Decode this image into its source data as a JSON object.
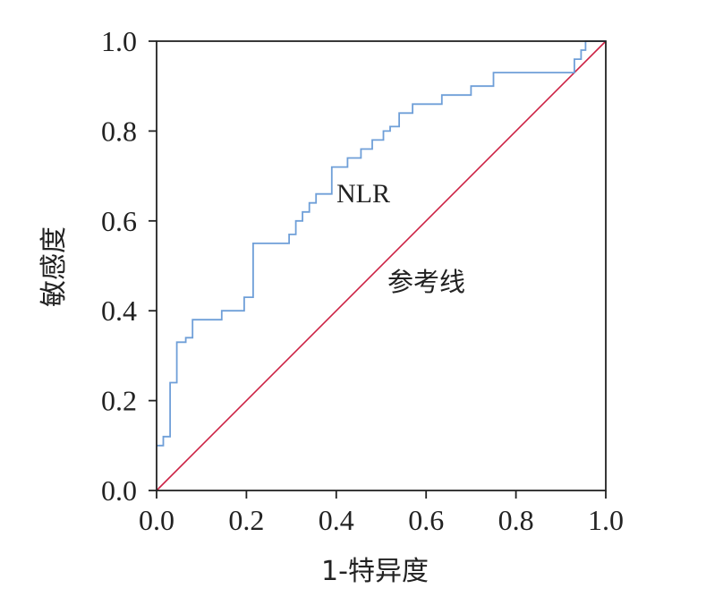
{
  "chart_data": {
    "type": "line",
    "xlabel": "1-特异度",
    "ylabel": "敏感度",
    "xlim": [
      0,
      1
    ],
    "ylim": [
      0,
      1
    ],
    "x_ticks": [
      "0.0",
      "0.2",
      "0.4",
      "0.6",
      "0.8",
      "1.0"
    ],
    "y_ticks": [
      "0.0",
      "0.2",
      "0.4",
      "0.6",
      "0.8",
      "1.0"
    ],
    "grid": false,
    "annotations": {
      "curve_label": "NLR",
      "reference_label": "参考线"
    },
    "colors": {
      "roc": "#6f9fd8",
      "reference": "#cc2244",
      "axis": "#222222"
    },
    "series": [
      {
        "name": "NLR",
        "step": true,
        "x": [
          0.0,
          0.015,
          0.015,
          0.03,
          0.03,
          0.045,
          0.045,
          0.065,
          0.065,
          0.08,
          0.08,
          0.145,
          0.145,
          0.195,
          0.195,
          0.215,
          0.215,
          0.295,
          0.295,
          0.31,
          0.31,
          0.325,
          0.325,
          0.34,
          0.34,
          0.355,
          0.355,
          0.39,
          0.39,
          0.425,
          0.425,
          0.455,
          0.455,
          0.48,
          0.48,
          0.505,
          0.505,
          0.52,
          0.52,
          0.54,
          0.54,
          0.57,
          0.57,
          0.635,
          0.635,
          0.7,
          0.7,
          0.75,
          0.75,
          0.93,
          0.93,
          0.945,
          0.945,
          0.955,
          0.955,
          1.0
        ],
        "y": [
          0.1,
          0.1,
          0.12,
          0.12,
          0.24,
          0.24,
          0.33,
          0.33,
          0.34,
          0.34,
          0.38,
          0.38,
          0.4,
          0.4,
          0.43,
          0.43,
          0.55,
          0.55,
          0.57,
          0.57,
          0.6,
          0.6,
          0.62,
          0.62,
          0.64,
          0.64,
          0.66,
          0.66,
          0.72,
          0.72,
          0.74,
          0.74,
          0.76,
          0.76,
          0.78,
          0.78,
          0.8,
          0.8,
          0.81,
          0.81,
          0.84,
          0.84,
          0.86,
          0.86,
          0.88,
          0.88,
          0.9,
          0.9,
          0.93,
          0.93,
          0.96,
          0.96,
          0.98,
          0.98,
          1.0,
          1.0
        ]
      },
      {
        "name": "参考线",
        "x": [
          0,
          1
        ],
        "y": [
          0,
          1
        ]
      }
    ]
  }
}
